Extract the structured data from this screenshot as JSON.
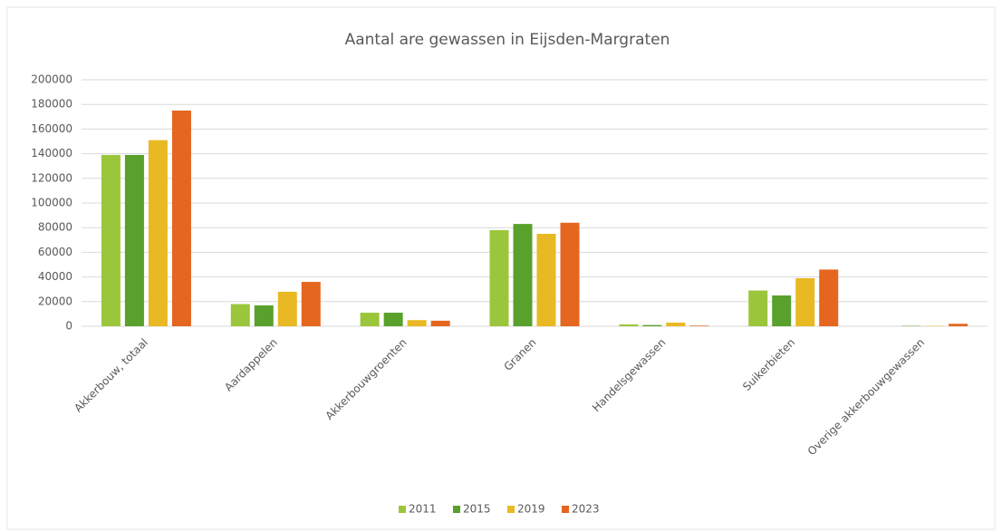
{
  "chart_data": {
    "type": "bar",
    "title": "Aantal are gewassen in Eijsden-Margraten",
    "categories": [
      "Akkerbouw, totaal",
      "Aardappelen",
      "Akkerbouwgroenten",
      "Granen",
      "Handelsgewassen",
      "Suikerbieten",
      "Overige akkerbouwgewassen"
    ],
    "series": [
      {
        "name": "2011",
        "color": "#9bc63b",
        "values": [
          139000,
          18000,
          11000,
          78000,
          1500,
          29000,
          0
        ]
      },
      {
        "name": "2015",
        "color": "#5aa02c",
        "values": [
          139000,
          17000,
          11000,
          83000,
          1000,
          25000,
          300
        ]
      },
      {
        "name": "2019",
        "color": "#e8b923",
        "values": [
          151000,
          28000,
          5000,
          75000,
          3000,
          39000,
          300
        ]
      },
      {
        "name": "2023",
        "color": "#e4661f",
        "values": [
          175000,
          36000,
          4500,
          84000,
          500,
          46000,
          2000
        ]
      }
    ],
    "ylim": [
      0,
      200000
    ],
    "yticks": [
      0,
      20000,
      40000,
      60000,
      80000,
      100000,
      120000,
      140000,
      160000,
      180000,
      200000
    ],
    "grid": true,
    "legend": "bottom"
  }
}
